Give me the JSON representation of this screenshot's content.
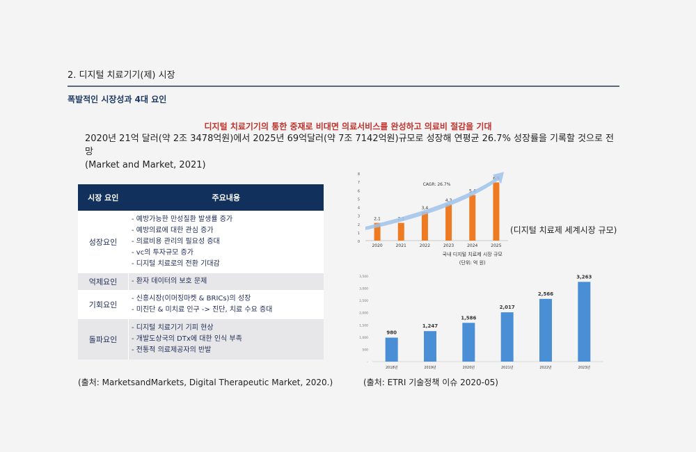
{
  "section_title": "2. 디지털 치료기기(제) 시장",
  "subtitle": "폭발적인 시장성과 4대 요인",
  "highlight": "디지털 치료기기의 통한 중재로 비대면 의료서비스를 완성하고 의료비 절감을 기대",
  "summary_line1": "2020년 21억 달러(약 2조 3478억원)에서 2025년 69억달러(약 7조 7142억원)규모로 성장해 연평균 26.7% 성장률을 기록할 것으로 전망",
  "summary_line2": "(Market and Market, 2021)",
  "table": {
    "headers": [
      "시장 요인",
      "주요내용"
    ],
    "rows": [
      {
        "category": "성장요인",
        "items": [
          "- 예방가능한 만성질환 발생률 증가",
          "- 예방의료에 대한 관심 증가",
          "- 의료비용 관리의 필요성 증대",
          "- vc의 투자규모 증가",
          "- 디지털 치료로의 전환 기대감"
        ]
      },
      {
        "category": "억제요인",
        "items": [
          "- 환자 데이터의 보호 문제"
        ]
      },
      {
        "category": "기회요인",
        "items": [
          "- 신흥시장(이머징마켓 & BRICs)의 성장",
          "- 미진단 & 미치료 인구 -> 진단, 치료 수요 증대"
        ]
      },
      {
        "category": "돌파요인",
        "items": [
          "- 디지털 치료기기 기피 현상",
          "- 개발도상국의 DTx에 대한 인식 부족",
          "- 전통적 의료제공자의 반발"
        ]
      }
    ]
  },
  "source_left": "(출처: MarketsandMarkets, Digital Therapeutic Market, 2020.)",
  "source_right": "(출처: ETRI 기술정책 이슈 2020-05)",
  "chart1_caption": "(디지털 치료제 세계시장 규모)",
  "colors": {
    "navy": "#12305c",
    "orange": "#ee7b22",
    "blue": "#4a8ed6",
    "red": "#c0322b"
  },
  "chart_data": [
    {
      "type": "bar",
      "categories": [
        "2020",
        "2021",
        "2022",
        "2023",
        "2024",
        "2025"
      ],
      "values": [
        2.1,
        2.1,
        3.4,
        4.3,
        5.4,
        6.9
      ],
      "value_labels": [
        "2,1",
        "2,1",
        "3,4",
        "4,3",
        "5,4",
        "6,9"
      ],
      "ylim": [
        0,
        8
      ],
      "yticks": [
        "0",
        "1",
        "2",
        "3",
        "4",
        "5",
        "6",
        "7",
        "8"
      ],
      "annotation": "CAGR: 26.7%",
      "caption": "국내 디지털 치료제 시장 규모",
      "unit": "(단위: 억 원)",
      "color": "#ee7b22"
    },
    {
      "type": "bar",
      "categories": [
        "2018년",
        "2019년",
        "2020년",
        "2021년",
        "2022년",
        "2023년"
      ],
      "values": [
        980,
        1247,
        1586,
        2017,
        2566,
        3263
      ],
      "value_labels": [
        "980",
        "1,247",
        "1,586",
        "2,017",
        "2,566",
        "3,263"
      ],
      "ylim": [
        0,
        3500
      ],
      "yticks": [
        "-",
        "500",
        "1,000",
        "1,500",
        "2,000",
        "2,500",
        "3,000",
        "3,500"
      ],
      "color": "#4a8ed6"
    }
  ]
}
